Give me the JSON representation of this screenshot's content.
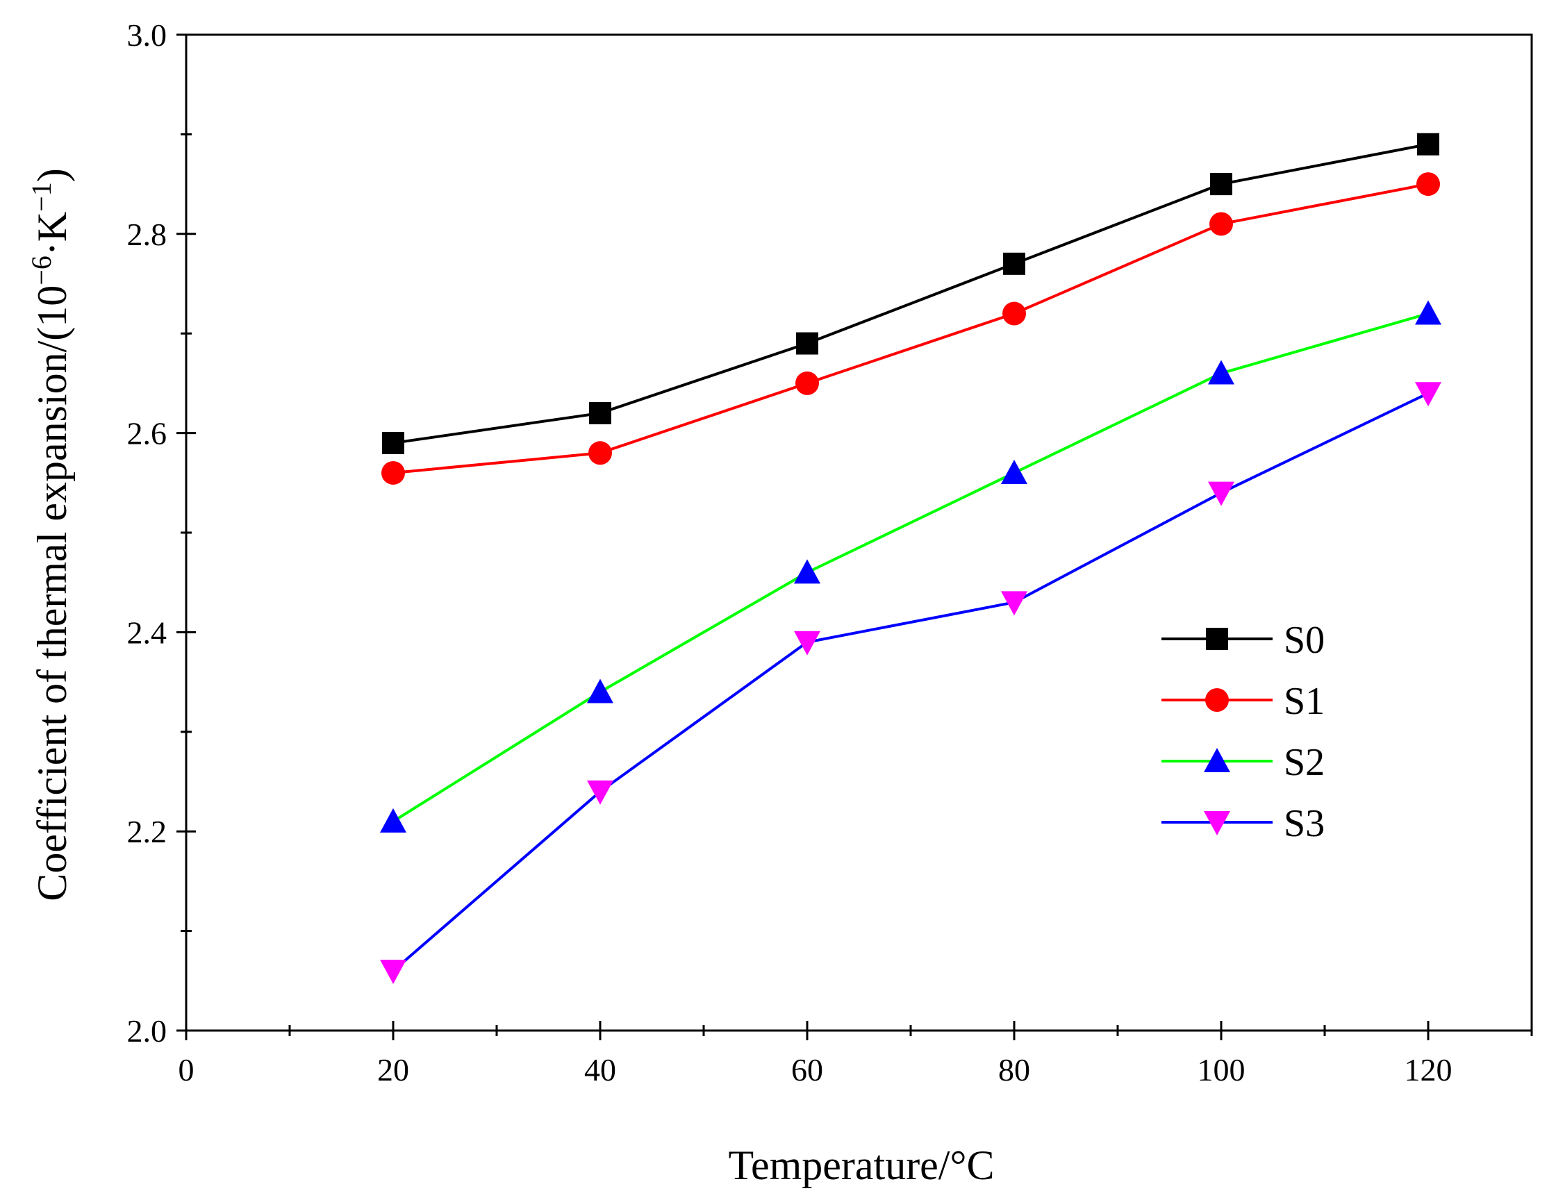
{
  "chart_data": {
    "type": "line",
    "title": "",
    "xlabel": "Temperature/°C",
    "ylabel": {
      "prefix": "Coefficient of thermal expansion/(10",
      "exp1": "−6",
      "middle": "·K",
      "exp2": "−1",
      "suffix": ")"
    },
    "xlim": [
      0,
      130
    ],
    "ylim": [
      2.0,
      3.0
    ],
    "xticks": [
      0,
      20,
      40,
      60,
      80,
      100,
      120
    ],
    "xtick_labels": [
      "0",
      "20",
      "40",
      "60",
      "80",
      "100",
      "120"
    ],
    "xminor": [
      10,
      30,
      50,
      70,
      90,
      110,
      130
    ],
    "yticks": [
      2.0,
      2.2,
      2.4,
      2.6,
      2.8,
      3.0
    ],
    "ytick_labels": [
      "2.0",
      "2.2",
      "2.4",
      "2.6",
      "2.8",
      "3.0"
    ],
    "yminor": [
      2.1,
      2.3,
      2.5,
      2.7,
      2.9
    ],
    "grid": false,
    "legend_position": "center-right",
    "x": [
      20,
      40,
      60,
      80,
      100,
      120
    ],
    "series": [
      {
        "name": "S0",
        "values": [
          2.59,
          2.62,
          2.69,
          2.77,
          2.85,
          2.89
        ],
        "line_color": "#000000",
        "marker_color": "#000000",
        "marker": "square"
      },
      {
        "name": "S1",
        "values": [
          2.56,
          2.58,
          2.65,
          2.72,
          2.81,
          2.85
        ],
        "line_color": "#ff0000",
        "marker_color": "#ff0000",
        "marker": "circle"
      },
      {
        "name": "S2",
        "values": [
          2.21,
          2.34,
          2.46,
          2.56,
          2.66,
          2.72
        ],
        "line_color": "#00ff00",
        "marker_color": "#0000ff",
        "marker": "triangle-up"
      },
      {
        "name": "S3",
        "values": [
          2.06,
          2.24,
          2.39,
          2.43,
          2.54,
          2.64
        ],
        "line_color": "#0000ff",
        "marker_color": "#ff00ff",
        "marker": "triangle-down"
      }
    ]
  }
}
